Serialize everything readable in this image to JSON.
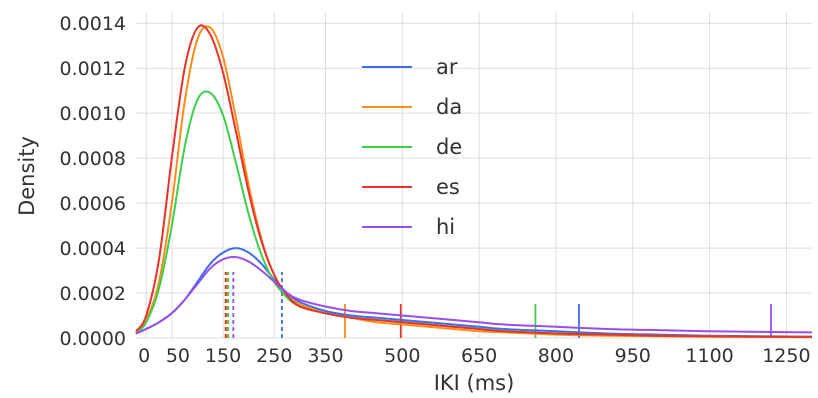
{
  "chart_data": {
    "type": "line",
    "title": "",
    "xlabel": "IKI (ms)",
    "ylabel": "Density",
    "xlim": [
      -20,
      1300
    ],
    "ylim": [
      0,
      0.00145
    ],
    "grid": true,
    "legend_position": "upper-center",
    "x_ticks": [
      {
        "value": 0,
        "label": "0"
      },
      {
        "value": 50,
        "label": "50"
      },
      {
        "value": 150,
        "label": "150"
      },
      {
        "value": 250,
        "label": "250"
      },
      {
        "value": 350,
        "label": "350"
      },
      {
        "value": 500,
        "label": "500"
      },
      {
        "value": 650,
        "label": "650"
      },
      {
        "value": 800,
        "label": "800"
      },
      {
        "value": 950,
        "label": "950"
      },
      {
        "value": 1100,
        "label": "1100"
      },
      {
        "value": 1250,
        "label": "1250"
      }
    ],
    "y_ticks": [
      {
        "value": 0.0,
        "label": "0.0000"
      },
      {
        "value": 0.0002,
        "label": "0.0002"
      },
      {
        "value": 0.0004,
        "label": "0.0004"
      },
      {
        "value": 0.0006,
        "label": "0.0006"
      },
      {
        "value": 0.0008,
        "label": "0.0008"
      },
      {
        "value": 0.001,
        "label": "0.0010"
      },
      {
        "value": 0.0012,
        "label": "0.0012"
      },
      {
        "value": 0.0014,
        "label": "0.0014"
      }
    ],
    "series": [
      {
        "name": "ar",
        "color": "#3b6ee8",
        "x": [
          -20,
          0,
          25,
          50,
          75,
          100,
          125,
          150,
          175,
          200,
          225,
          250,
          275,
          300,
          350,
          400,
          450,
          500,
          550,
          600,
          650,
          700,
          800,
          900,
          1000,
          1100,
          1200,
          1300
        ],
        "y": [
          2e-05,
          4e-05,
          7e-05,
          0.00011,
          0.00017,
          0.00025,
          0.00033,
          0.00038,
          0.0004,
          0.00038,
          0.00033,
          0.00026,
          0.0002,
          0.00016,
          0.00012,
          0.0001,
          9e-05,
          8e-05,
          7e-05,
          6e-05,
          5e-05,
          4e-05,
          3e-05,
          2e-05,
          1.5e-05,
          1e-05,
          8e-06,
          6e-06
        ],
        "median": 265,
        "mean": 845
      },
      {
        "name": "da",
        "color": "#ff8c1a",
        "x": [
          -20,
          0,
          25,
          50,
          75,
          100,
          125,
          150,
          175,
          200,
          225,
          250,
          275,
          300,
          350,
          400,
          450,
          500,
          550,
          600,
          650,
          700,
          800,
          900,
          1000,
          1100,
          1200,
          1300
        ],
        "y": [
          2e-05,
          8e-05,
          0.00025,
          0.0006,
          0.00105,
          0.00133,
          0.00138,
          0.00125,
          0.00098,
          0.00068,
          0.00044,
          0.00028,
          0.00019,
          0.00015,
          0.00011,
          9e-05,
          7e-05,
          6e-05,
          5e-05,
          4e-05,
          3e-05,
          2.5e-05,
          1.5e-05,
          1e-05,
          8e-06,
          6e-06,
          5e-06,
          4e-06
        ],
        "median": 158,
        "mean": 388
      },
      {
        "name": "de",
        "color": "#3ccf4e",
        "x": [
          -20,
          0,
          25,
          50,
          75,
          100,
          125,
          150,
          175,
          200,
          225,
          250,
          275,
          300,
          350,
          400,
          450,
          500,
          550,
          600,
          650,
          700,
          800,
          900,
          1000,
          1100,
          1200,
          1300
        ],
        "y": [
          2e-05,
          7e-05,
          0.00022,
          0.0005,
          0.00085,
          0.00106,
          0.00109,
          0.00099,
          0.00078,
          0.00055,
          0.00037,
          0.00025,
          0.00018,
          0.00014,
          0.00011,
          9e-05,
          8e-05,
          7e-05,
          6e-05,
          5e-05,
          4e-05,
          3e-05,
          2e-05,
          1.5e-05,
          1e-05,
          8e-06,
          6e-06,
          5e-06
        ],
        "median": 160,
        "mean": 760
      },
      {
        "name": "es",
        "color": "#e8322b",
        "x": [
          -20,
          0,
          25,
          50,
          75,
          100,
          125,
          150,
          175,
          200,
          225,
          250,
          275,
          300,
          350,
          400,
          450,
          500,
          550,
          600,
          650,
          700,
          800,
          900,
          1000,
          1100,
          1200,
          1300
        ],
        "y": [
          3e-05,
          0.0001,
          0.00035,
          0.0008,
          0.0012,
          0.00138,
          0.00135,
          0.00118,
          0.00092,
          0.00065,
          0.00043,
          0.00028,
          0.00019,
          0.00014,
          0.00011,
          9e-05,
          8e-05,
          7e-05,
          6e-05,
          5e-05,
          4e-05,
          3e-05,
          2e-05,
          1.5e-05,
          1e-05,
          8e-06,
          6e-06,
          5e-06
        ],
        "median": 155,
        "mean": 497
      },
      {
        "name": "hi",
        "color": "#9b4de8",
        "x": [
          -20,
          0,
          25,
          50,
          75,
          100,
          125,
          150,
          175,
          200,
          225,
          250,
          275,
          300,
          350,
          400,
          450,
          500,
          550,
          600,
          650,
          700,
          800,
          900,
          1000,
          1100,
          1200,
          1300
        ],
        "y": [
          2e-05,
          4e-05,
          7e-05,
          0.00011,
          0.00017,
          0.00024,
          0.00031,
          0.00035,
          0.00036,
          0.00034,
          0.0003,
          0.00025,
          0.0002,
          0.00017,
          0.00014,
          0.00012,
          0.00011,
          0.0001,
          9e-05,
          8e-05,
          7e-05,
          6e-05,
          5e-05,
          4e-05,
          3.5e-05,
          3e-05,
          2.7e-05,
          2.5e-05
        ],
        "median": 170,
        "mean": 1220
      }
    ]
  }
}
